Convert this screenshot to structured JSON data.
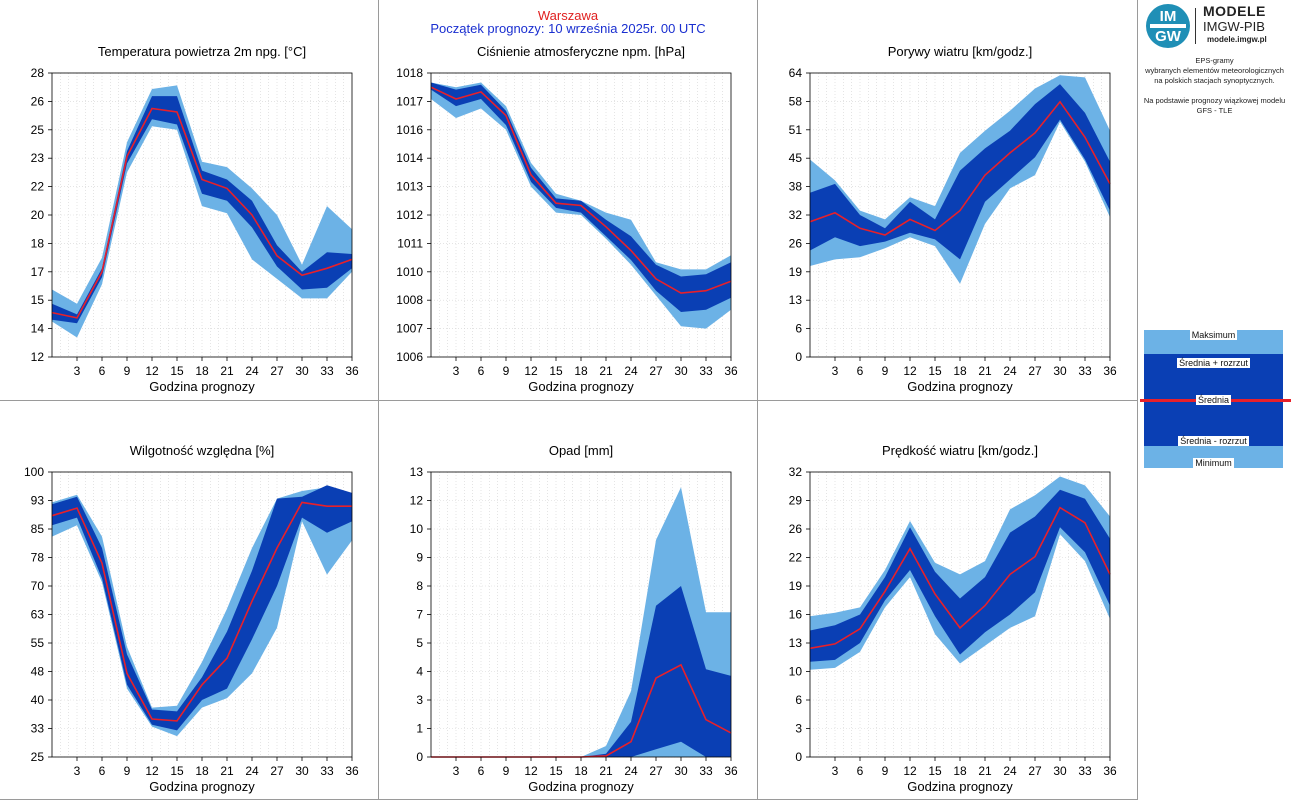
{
  "header": {
    "city": "Warszawa",
    "forecast_start": "Początek prognozy: 10 września 2025r. 00 UTC"
  },
  "logo": {
    "line1": "MODELE",
    "line2": "IMGW-PIB",
    "url": "modele.imgw.pl",
    "mark_top": "IM",
    "mark_bottom": "GW"
  },
  "description": {
    "lines": [
      "EPS-gramy",
      "wybranych elementów meteorologicznych",
      "na polskich stacjach  synoptycznych.",
      "",
      "Na podstawie prognozy wiązkowej modelu",
      "GFS - TLE"
    ]
  },
  "legend": {
    "max": "Maksimum",
    "mean_plus": "Średnia + rozrzut",
    "mean": "Średnia",
    "mean_minus": "Średnia - rozrzut",
    "min": "Minimum"
  },
  "colors": {
    "outer_band": "#6cb2e6",
    "inner_band": "#0a3fb4",
    "mean_line": "#e8202a",
    "grid": "#d4d4d4",
    "frame": "#9a9a9a"
  },
  "chart_data": [
    {
      "type": "area",
      "title": "Temperatura powietrza 2m npg. [°C]",
      "xlabel": "Godzina prognozy",
      "x": [
        0,
        3,
        6,
        9,
        12,
        15,
        18,
        21,
        24,
        27,
        30,
        33,
        36
      ],
      "xticks": [
        3,
        6,
        9,
        12,
        15,
        18,
        21,
        24,
        27,
        30,
        33,
        36
      ],
      "ylim": [
        12,
        28
      ],
      "yticks": [
        "12",
        "14",
        "15",
        "17",
        "18",
        "20",
        "22",
        "23",
        "25",
        "26",
        "28"
      ],
      "series": [
        {
          "name": "Maksimum",
          "values": [
            15.8,
            15.0,
            17.6,
            24.1,
            27.1,
            27.3,
            23.0,
            22.7,
            21.5,
            20.0,
            17.2,
            20.5,
            19.2
          ]
        },
        {
          "name": "Średnia + rozrzut",
          "values": [
            15.0,
            14.4,
            17.0,
            23.6,
            26.7,
            26.7,
            22.5,
            22.0,
            20.8,
            18.3,
            16.8,
            17.9,
            17.8
          ]
        },
        {
          "name": "Średnia",
          "values": [
            14.5,
            14.2,
            16.8,
            23.3,
            26.0,
            25.8,
            22.0,
            21.5,
            20.0,
            17.7,
            16.6,
            17.0,
            17.5
          ]
        },
        {
          "name": "Średnia - rozrzut",
          "values": [
            14.1,
            13.9,
            16.5,
            22.9,
            25.4,
            25.1,
            21.2,
            20.8,
            19.3,
            17.1,
            15.8,
            15.9,
            17.0
          ]
        },
        {
          "name": "Minimum",
          "values": [
            14.0,
            13.1,
            16.1,
            22.4,
            25.0,
            24.8,
            20.5,
            20.1,
            17.5,
            16.4,
            15.3,
            15.3,
            16.8
          ]
        }
      ]
    },
    {
      "type": "area",
      "title": "Ciśnienie atmosferyczne npm. [hPa]",
      "xlabel": "Godzina prognozy",
      "x": [
        0,
        3,
        6,
        9,
        12,
        15,
        18,
        21,
        24,
        27,
        30,
        33,
        36
      ],
      "xticks": [
        3,
        6,
        9,
        12,
        15,
        18,
        21,
        24,
        27,
        30,
        33,
        36
      ],
      "ylim": [
        1006,
        1018
      ],
      "yticks": [
        "1006",
        "1007",
        "1008",
        "1010",
        "1011",
        "1012",
        "1013",
        "1014",
        "1016",
        "1017",
        "1018"
      ],
      "series": [
        {
          "name": "Maksimum",
          "values": [
            1017.6,
            1017.4,
            1017.6,
            1016.6,
            1014.2,
            1012.9,
            1012.6,
            1012.1,
            1011.8,
            1010.0,
            1009.7,
            1009.7,
            1010.3
          ]
        },
        {
          "name": "Średnia + rozrzut",
          "values": [
            1017.6,
            1017.3,
            1017.5,
            1016.4,
            1014.0,
            1012.7,
            1012.6,
            1011.8,
            1011.1,
            1009.9,
            1009.4,
            1009.5,
            1010.0
          ]
        },
        {
          "name": "Średnia",
          "values": [
            1017.4,
            1016.9,
            1017.2,
            1016.2,
            1013.7,
            1012.5,
            1012.4,
            1011.5,
            1010.5,
            1009.3,
            1008.7,
            1008.8,
            1009.2
          ]
        },
        {
          "name": "Średnia - rozrzut",
          "values": [
            1017.3,
            1016.6,
            1016.9,
            1015.8,
            1013.4,
            1012.3,
            1012.1,
            1011.1,
            1010.1,
            1008.8,
            1007.9,
            1008.0,
            1008.5
          ]
        },
        {
          "name": "Minimum",
          "values": [
            1016.9,
            1016.1,
            1016.5,
            1015.6,
            1013.2,
            1012.1,
            1012.0,
            1011.0,
            1009.9,
            1008.6,
            1007.3,
            1007.2,
            1008.0
          ]
        }
      ]
    },
    {
      "type": "area",
      "title": "Porywy wiatru [km/godz.]",
      "xlabel": "Godzina prognozy",
      "x": [
        0,
        3,
        6,
        9,
        12,
        15,
        18,
        21,
        24,
        27,
        30,
        33,
        36
      ],
      "xticks": [
        3,
        6,
        9,
        12,
        15,
        18,
        21,
        24,
        27,
        30,
        33,
        36
      ],
      "ylim": [
        0,
        64
      ],
      "yticks": [
        "0",
        "6",
        "13",
        "19",
        "26",
        "32",
        "38",
        "45",
        "51",
        "58",
        "64"
      ],
      "series": [
        {
          "name": "Maksimum",
          "values": [
            44.5,
            39.8,
            33.0,
            31.0,
            36.0,
            34.0,
            46.0,
            51.0,
            55.5,
            60.5,
            63.5,
            63.0,
            51.0
          ]
        },
        {
          "name": "Średnia + rozrzut",
          "values": [
            37.0,
            39.0,
            32.0,
            29.0,
            35.0,
            31.0,
            42.0,
            47.0,
            51.0,
            57.0,
            61.5,
            55.0,
            44.0
          ]
        },
        {
          "name": "Średnia",
          "values": [
            30.5,
            32.5,
            29.0,
            27.5,
            31.0,
            28.5,
            33.0,
            41.0,
            46.0,
            50.5,
            57.5,
            49.5,
            39.0
          ]
        },
        {
          "name": "Średnia - rozrzut",
          "values": [
            24.0,
            27.0,
            25.0,
            26.0,
            28.0,
            26.5,
            22.0,
            35.0,
            40.0,
            45.0,
            53.5,
            44.5,
            33.0
          ]
        },
        {
          "name": "Minimum",
          "values": [
            20.5,
            22.0,
            22.5,
            24.5,
            27.0,
            25.0,
            16.5,
            30.0,
            38.0,
            41.0,
            53.0,
            44.0,
            31.5
          ]
        }
      ]
    },
    {
      "type": "area",
      "title": "Wilgotność względna [%]",
      "xlabel": "Godzina prognozy",
      "x": [
        0,
        3,
        6,
        9,
        12,
        15,
        18,
        21,
        24,
        27,
        30,
        33,
        36
      ],
      "xticks": [
        3,
        6,
        9,
        12,
        15,
        18,
        21,
        24,
        27,
        30,
        33,
        36
      ],
      "ylim": [
        25,
        100
      ],
      "yticks": [
        "25",
        "33",
        "40",
        "48",
        "55",
        "63",
        "70",
        "78",
        "85",
        "93",
        "100"
      ],
      "series": [
        {
          "name": "Maksimum",
          "values": [
            92.0,
            94.0,
            83.0,
            54.0,
            38.0,
            38.5,
            50.0,
            64.0,
            80.0,
            93.0,
            95.0,
            96.0,
            94.0
          ]
        },
        {
          "name": "Średnia + rozrzut",
          "values": [
            91.5,
            93.5,
            80.0,
            52.0,
            37.5,
            37.0,
            46.0,
            58.0,
            74.0,
            93.0,
            93.5,
            96.5,
            94.5
          ]
        },
        {
          "name": "Średnia",
          "values": [
            88.5,
            90.5,
            76.0,
            47.0,
            35.0,
            34.5,
            44.0,
            51.0,
            66.0,
            80.0,
            92.0,
            91.0,
            91.0
          ]
        },
        {
          "name": "Średnia - rozrzut",
          "values": [
            86.0,
            88.0,
            72.0,
            44.0,
            33.5,
            32.0,
            40.0,
            43.0,
            56.0,
            70.0,
            88.0,
            84.0,
            87.0
          ]
        },
        {
          "name": "Minimum",
          "values": [
            83.0,
            86.0,
            71.0,
            43.0,
            33.0,
            30.5,
            38.0,
            40.5,
            47.0,
            59.0,
            87.0,
            73.0,
            82.0
          ]
        }
      ]
    },
    {
      "type": "area",
      "title": "Opad [mm]",
      "xlabel": "Godzina prognozy",
      "x": [
        0,
        3,
        6,
        9,
        12,
        15,
        18,
        21,
        24,
        27,
        30,
        33,
        36
      ],
      "xticks": [
        3,
        6,
        9,
        12,
        15,
        18,
        21,
        24,
        27,
        30,
        33,
        36
      ],
      "ylim": [
        0,
        13
      ],
      "yticks": [
        "0",
        "1",
        "3",
        "4",
        "5",
        "7",
        "8",
        "9",
        "10",
        "12",
        "13"
      ],
      "series": [
        {
          "name": "Maksimum",
          "values": [
            0,
            0,
            0,
            0,
            0,
            0,
            0,
            0.5,
            3.0,
            9.9,
            12.3,
            6.6,
            6.6
          ]
        },
        {
          "name": "Średnia + rozrzut",
          "values": [
            0,
            0,
            0,
            0,
            0,
            0,
            0,
            0.15,
            1.6,
            6.9,
            7.8,
            4.0,
            3.7
          ]
        },
        {
          "name": "Średnia",
          "values": [
            0,
            0,
            0,
            0,
            0,
            0,
            0,
            0.05,
            0.7,
            3.6,
            4.2,
            1.7,
            1.1
          ]
        },
        {
          "name": "Średnia - rozrzut",
          "values": [
            0,
            0,
            0,
            0,
            0,
            0,
            0,
            0,
            0,
            0.35,
            0.7,
            0,
            0
          ]
        },
        {
          "name": "Minimum",
          "values": [
            0,
            0,
            0,
            0,
            0,
            0,
            0,
            0,
            0,
            0,
            0,
            0,
            0
          ]
        }
      ]
    },
    {
      "type": "area",
      "title": "Prędkość wiatru [km/godz.]",
      "xlabel": "Godzina prognozy",
      "x": [
        0,
        3,
        6,
        9,
        12,
        15,
        18,
        21,
        24,
        27,
        30,
        33,
        36
      ],
      "xticks": [
        3,
        6,
        9,
        12,
        15,
        18,
        21,
        24,
        27,
        30,
        33,
        36
      ],
      "ylim": [
        0,
        32
      ],
      "yticks": [
        "0",
        "3",
        "6",
        "10",
        "13",
        "16",
        "19",
        "22",
        "26",
        "29",
        "32"
      ],
      "series": [
        {
          "name": "Maksimum",
          "values": [
            15.8,
            16.2,
            16.8,
            21.0,
            26.5,
            21.8,
            20.5,
            22.0,
            27.8,
            29.4,
            31.5,
            30.5,
            27.0
          ]
        },
        {
          "name": "Średnia + rozrzut",
          "values": [
            14.2,
            14.8,
            16.0,
            20.2,
            25.8,
            20.8,
            17.8,
            20.2,
            25.2,
            27.0,
            30.0,
            29.0,
            24.5
          ]
        },
        {
          "name": "Średnia",
          "values": [
            12.2,
            12.7,
            14.4,
            18.6,
            23.4,
            18.3,
            14.5,
            17.0,
            20.5,
            22.5,
            28.0,
            26.3,
            20.5
          ]
        },
        {
          "name": "Średnia - rozrzut",
          "values": [
            10.7,
            10.9,
            12.8,
            17.6,
            21.0,
            15.8,
            11.5,
            14.0,
            16.0,
            18.5,
            25.8,
            23.0,
            17.0
          ]
        },
        {
          "name": "Minimum",
          "values": [
            9.8,
            10.0,
            11.8,
            16.8,
            20.2,
            13.8,
            10.5,
            12.5,
            14.5,
            15.8,
            25.0,
            22.0,
            15.5
          ]
        }
      ]
    }
  ]
}
